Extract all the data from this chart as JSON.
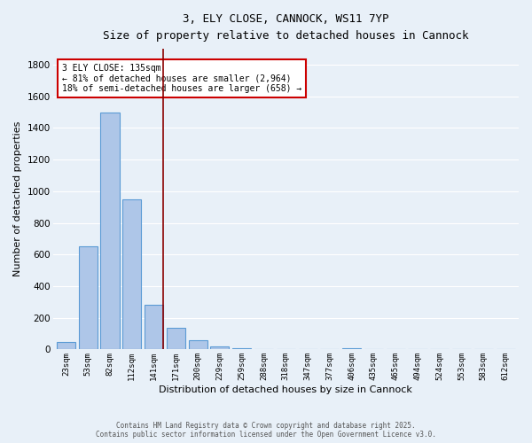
{
  "title1": "3, ELY CLOSE, CANNOCK, WS11 7YP",
  "title2": "Size of property relative to detached houses in Cannock",
  "xlabel": "Distribution of detached houses by size in Cannock",
  "ylabel": "Number of detached properties",
  "categories": [
    "23sqm",
    "53sqm",
    "82sqm",
    "112sqm",
    "141sqm",
    "171sqm",
    "200sqm",
    "229sqm",
    "259sqm",
    "288sqm",
    "318sqm",
    "347sqm",
    "377sqm",
    "406sqm",
    "435sqm",
    "465sqm",
    "494sqm",
    "524sqm",
    "553sqm",
    "583sqm",
    "612sqm"
  ],
  "values": [
    45,
    650,
    1500,
    950,
    280,
    135,
    60,
    20,
    8,
    3,
    2,
    1,
    1,
    10,
    0,
    0,
    0,
    0,
    0,
    0,
    0
  ],
  "bar_color": "#aec6e8",
  "bar_edge_color": "#5b9bd5",
  "bg_color": "#e8f0f8",
  "grid_color": "#ffffff",
  "vline_color": "#8b0000",
  "vline_x_index": 4,
  "annotation_title": "3 ELY CLOSE: 135sqm",
  "annotation_line1": "← 81% of detached houses are smaller (2,964)",
  "annotation_line2": "18% of semi-detached houses are larger (658) →",
  "annotation_box_color": "#ffffff",
  "annotation_box_edge": "#cc0000",
  "footer1": "Contains HM Land Registry data © Crown copyright and database right 2025.",
  "footer2": "Contains public sector information licensed under the Open Government Licence v3.0.",
  "ylim": [
    0,
    1900
  ],
  "yticks": [
    0,
    200,
    400,
    600,
    800,
    1000,
    1200,
    1400,
    1600,
    1800
  ]
}
